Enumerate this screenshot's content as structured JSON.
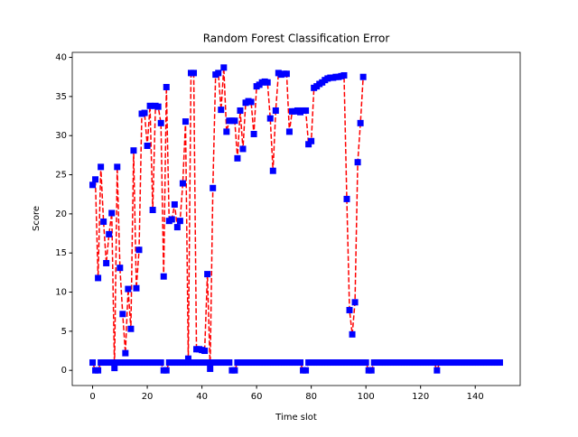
{
  "chart_data": {
    "type": "line",
    "title": "Random Forest Classification Error",
    "xlabel": "Time slot",
    "ylabel": "Score",
    "x": [
      0,
      1,
      2,
      3,
      4,
      5,
      6,
      7,
      8,
      9,
      10,
      11,
      12,
      13,
      14,
      15,
      16,
      17,
      18,
      19,
      20,
      21,
      22,
      23,
      24,
      25,
      26,
      27,
      28,
      29,
      30,
      31,
      32,
      33,
      34,
      35,
      36,
      37,
      38,
      39,
      40,
      41,
      42,
      43,
      44,
      45,
      46,
      47,
      48,
      49,
      50,
      51,
      52,
      53,
      54,
      55,
      56,
      57,
      58,
      59,
      60,
      61,
      62,
      63,
      64,
      65,
      66,
      67,
      68,
      69,
      70,
      71,
      72,
      73,
      74,
      75,
      76,
      77,
      78,
      79,
      80,
      81,
      82,
      83,
      84,
      85,
      86,
      87,
      88,
      89,
      90,
      91,
      92,
      93,
      94,
      95,
      96,
      97,
      98,
      99,
      100,
      101,
      102,
      103,
      104,
      105,
      106,
      107,
      108,
      109,
      110,
      111,
      112,
      113,
      114,
      115,
      116,
      117,
      118,
      119,
      120,
      121,
      122,
      123,
      124,
      125,
      126,
      127,
      128,
      129,
      130,
      131,
      132,
      133,
      134,
      135,
      136,
      137,
      138,
      139,
      140,
      141,
      142,
      143,
      144,
      145,
      146,
      147,
      148,
      149
    ],
    "series": [
      {
        "color": "#ff0000",
        "marker_color": "#0000ff",
        "values": [
          23.7,
          24.4,
          11.8,
          26,
          19,
          13.7,
          17.4,
          20.1,
          0.3,
          26,
          13.1,
          7.2,
          2.2,
          10.4,
          5.3,
          28.1,
          10.5,
          15.4,
          32.8,
          32.9,
          28.7,
          33.8,
          20.5,
          33.8,
          33.7,
          31.6,
          12,
          36.2,
          19.1,
          19.3,
          21.2,
          18.3,
          19.1,
          23.9,
          31.8,
          1.5,
          38,
          38,
          2.7,
          2.7,
          2.6,
          2.5,
          12.3,
          0.2,
          23.3,
          37.8,
          38,
          33.3,
          38.7,
          30.5,
          31.9,
          31.9,
          31.9,
          27.1,
          33.2,
          28.3,
          34.2,
          34.4,
          34.3,
          30.2,
          36.3,
          36.5,
          36.8,
          36.9,
          36.8,
          32.2,
          25.5,
          33.2,
          38,
          37.8,
          37.9,
          37.9,
          30.5,
          33.1,
          33.1,
          33.2,
          33,
          33.2,
          33.2,
          28.9,
          29.3,
          36.1,
          36.3,
          36.6,
          36.8,
          37.1,
          37.3,
          37.4,
          37.4,
          37.5,
          37.5,
          37.6,
          37.7,
          21.9,
          7.7,
          4.6,
          8.7,
          26.6,
          31.6,
          37.5,
          null,
          null,
          null,
          null,
          null,
          null,
          null,
          null,
          null,
          null,
          null,
          null,
          null,
          null,
          null,
          null,
          null,
          null,
          null,
          null,
          null,
          null,
          null,
          null,
          null,
          null,
          null,
          null,
          null,
          null,
          null,
          null,
          null,
          null,
          null,
          null,
          null,
          null,
          null,
          null,
          null,
          null,
          null,
          null,
          null,
          null,
          null,
          null,
          null,
          null
        ]
      },
      {
        "color": "#ff0000",
        "marker_color": "#0000ff",
        "values": [
          1,
          0,
          0,
          1,
          1,
          1,
          1,
          1,
          1,
          1,
          1,
          1,
          1,
          1,
          1,
          1,
          1,
          1,
          1,
          1,
          1,
          1,
          1,
          1,
          1,
          1,
          0,
          0,
          1,
          1,
          1,
          1,
          1,
          1,
          1,
          1,
          1,
          1,
          1,
          1,
          1,
          1,
          1,
          1,
          1,
          1,
          1,
          1,
          1,
          1,
          1,
          0,
          0,
          1,
          1,
          1,
          1,
          1,
          1,
          1,
          1,
          1,
          1,
          1,
          1,
          1,
          1,
          1,
          1,
          1,
          1,
          1,
          1,
          1,
          1,
          1,
          1,
          0,
          0,
          1,
          1,
          1,
          1,
          1,
          1,
          1,
          1,
          1,
          1,
          1,
          1,
          1,
          1,
          1,
          1,
          1,
          1,
          1,
          1,
          1,
          1,
          0,
          0,
          1,
          1,
          1,
          1,
          1,
          1,
          1,
          1,
          1,
          1,
          1,
          1,
          1,
          1,
          1,
          1,
          1,
          1,
          1,
          1,
          1,
          1,
          1,
          0,
          1,
          1,
          1,
          1,
          1,
          1,
          1,
          1,
          1,
          1,
          1,
          1,
          1,
          1,
          1,
          1,
          1,
          1,
          1,
          1,
          1,
          1,
          1
        ]
      }
    ],
    "xlim": [
      -7.45,
      156.45
    ],
    "xticks": [
      0,
      20,
      40,
      60,
      80,
      100,
      120,
      140
    ],
    "ylim": [
      -1.94,
      40.64
    ],
    "yticks": [
      0,
      5,
      10,
      15,
      20,
      25,
      30,
      35,
      40
    ],
    "grid": false
  }
}
